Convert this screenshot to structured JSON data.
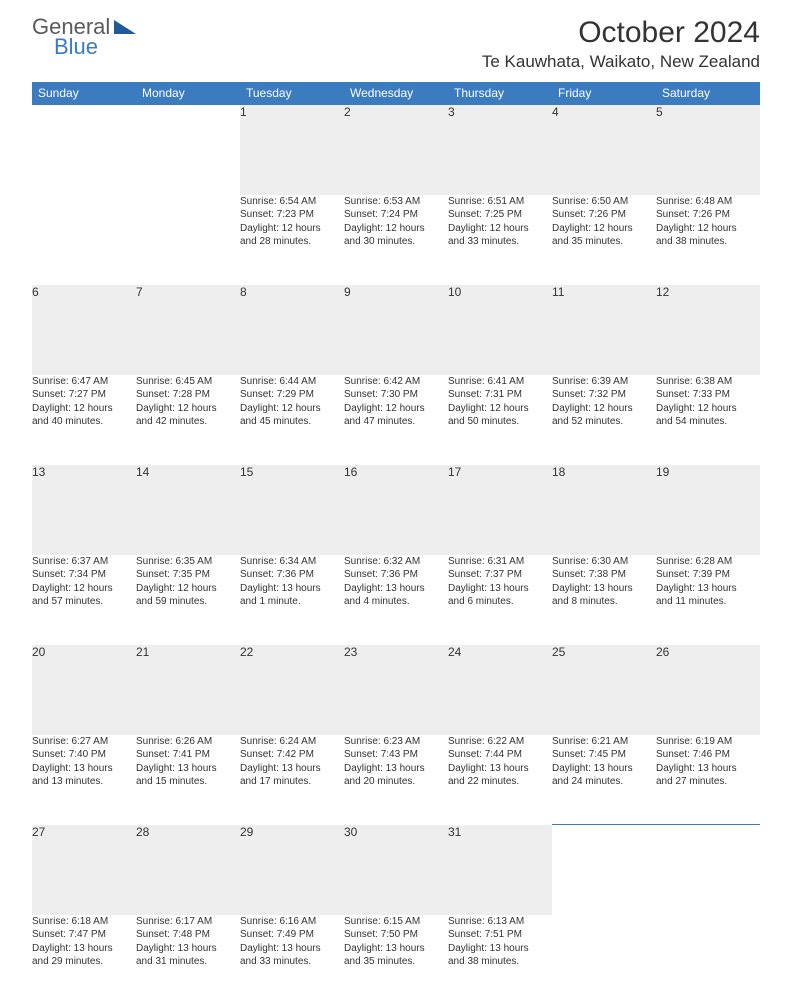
{
  "brand": {
    "word1": "General",
    "word2": "Blue",
    "icon_color": "#1f5a9a"
  },
  "title": "October 2024",
  "location": "Te Kauwhata, Waikato, New Zealand",
  "colors": {
    "header_bg": "#3b7bbf",
    "header_text": "#ffffff",
    "daynum_bg": "#eeeeee",
    "border": "#3b7bbf",
    "body_bg": "#ffffff",
    "text": "#333333"
  },
  "typography": {
    "title_fontsize": 30,
    "location_fontsize": 17,
    "weekday_fontsize": 12,
    "daynum_fontsize": 12,
    "cell_fontsize": 10
  },
  "weekdays": [
    "Sunday",
    "Monday",
    "Tuesday",
    "Wednesday",
    "Thursday",
    "Friday",
    "Saturday"
  ],
  "weeks": [
    [
      null,
      null,
      {
        "n": "1",
        "sr": "Sunrise: 6:54 AM",
        "ss": "Sunset: 7:23 PM",
        "d1": "Daylight: 12 hours",
        "d2": "and 28 minutes."
      },
      {
        "n": "2",
        "sr": "Sunrise: 6:53 AM",
        "ss": "Sunset: 7:24 PM",
        "d1": "Daylight: 12 hours",
        "d2": "and 30 minutes."
      },
      {
        "n": "3",
        "sr": "Sunrise: 6:51 AM",
        "ss": "Sunset: 7:25 PM",
        "d1": "Daylight: 12 hours",
        "d2": "and 33 minutes."
      },
      {
        "n": "4",
        "sr": "Sunrise: 6:50 AM",
        "ss": "Sunset: 7:26 PM",
        "d1": "Daylight: 12 hours",
        "d2": "and 35 minutes."
      },
      {
        "n": "5",
        "sr": "Sunrise: 6:48 AM",
        "ss": "Sunset: 7:26 PM",
        "d1": "Daylight: 12 hours",
        "d2": "and 38 minutes."
      }
    ],
    [
      {
        "n": "6",
        "sr": "Sunrise: 6:47 AM",
        "ss": "Sunset: 7:27 PM",
        "d1": "Daylight: 12 hours",
        "d2": "and 40 minutes."
      },
      {
        "n": "7",
        "sr": "Sunrise: 6:45 AM",
        "ss": "Sunset: 7:28 PM",
        "d1": "Daylight: 12 hours",
        "d2": "and 42 minutes."
      },
      {
        "n": "8",
        "sr": "Sunrise: 6:44 AM",
        "ss": "Sunset: 7:29 PM",
        "d1": "Daylight: 12 hours",
        "d2": "and 45 minutes."
      },
      {
        "n": "9",
        "sr": "Sunrise: 6:42 AM",
        "ss": "Sunset: 7:30 PM",
        "d1": "Daylight: 12 hours",
        "d2": "and 47 minutes."
      },
      {
        "n": "10",
        "sr": "Sunrise: 6:41 AM",
        "ss": "Sunset: 7:31 PM",
        "d1": "Daylight: 12 hours",
        "d2": "and 50 minutes."
      },
      {
        "n": "11",
        "sr": "Sunrise: 6:39 AM",
        "ss": "Sunset: 7:32 PM",
        "d1": "Daylight: 12 hours",
        "d2": "and 52 minutes."
      },
      {
        "n": "12",
        "sr": "Sunrise: 6:38 AM",
        "ss": "Sunset: 7:33 PM",
        "d1": "Daylight: 12 hours",
        "d2": "and 54 minutes."
      }
    ],
    [
      {
        "n": "13",
        "sr": "Sunrise: 6:37 AM",
        "ss": "Sunset: 7:34 PM",
        "d1": "Daylight: 12 hours",
        "d2": "and 57 minutes."
      },
      {
        "n": "14",
        "sr": "Sunrise: 6:35 AM",
        "ss": "Sunset: 7:35 PM",
        "d1": "Daylight: 12 hours",
        "d2": "and 59 minutes."
      },
      {
        "n": "15",
        "sr": "Sunrise: 6:34 AM",
        "ss": "Sunset: 7:36 PM",
        "d1": "Daylight: 13 hours",
        "d2": "and 1 minute."
      },
      {
        "n": "16",
        "sr": "Sunrise: 6:32 AM",
        "ss": "Sunset: 7:36 PM",
        "d1": "Daylight: 13 hours",
        "d2": "and 4 minutes."
      },
      {
        "n": "17",
        "sr": "Sunrise: 6:31 AM",
        "ss": "Sunset: 7:37 PM",
        "d1": "Daylight: 13 hours",
        "d2": "and 6 minutes."
      },
      {
        "n": "18",
        "sr": "Sunrise: 6:30 AM",
        "ss": "Sunset: 7:38 PM",
        "d1": "Daylight: 13 hours",
        "d2": "and 8 minutes."
      },
      {
        "n": "19",
        "sr": "Sunrise: 6:28 AM",
        "ss": "Sunset: 7:39 PM",
        "d1": "Daylight: 13 hours",
        "d2": "and 11 minutes."
      }
    ],
    [
      {
        "n": "20",
        "sr": "Sunrise: 6:27 AM",
        "ss": "Sunset: 7:40 PM",
        "d1": "Daylight: 13 hours",
        "d2": "and 13 minutes."
      },
      {
        "n": "21",
        "sr": "Sunrise: 6:26 AM",
        "ss": "Sunset: 7:41 PM",
        "d1": "Daylight: 13 hours",
        "d2": "and 15 minutes."
      },
      {
        "n": "22",
        "sr": "Sunrise: 6:24 AM",
        "ss": "Sunset: 7:42 PM",
        "d1": "Daylight: 13 hours",
        "d2": "and 17 minutes."
      },
      {
        "n": "23",
        "sr": "Sunrise: 6:23 AM",
        "ss": "Sunset: 7:43 PM",
        "d1": "Daylight: 13 hours",
        "d2": "and 20 minutes."
      },
      {
        "n": "24",
        "sr": "Sunrise: 6:22 AM",
        "ss": "Sunset: 7:44 PM",
        "d1": "Daylight: 13 hours",
        "d2": "and 22 minutes."
      },
      {
        "n": "25",
        "sr": "Sunrise: 6:21 AM",
        "ss": "Sunset: 7:45 PM",
        "d1": "Daylight: 13 hours",
        "d2": "and 24 minutes."
      },
      {
        "n": "26",
        "sr": "Sunrise: 6:19 AM",
        "ss": "Sunset: 7:46 PM",
        "d1": "Daylight: 13 hours",
        "d2": "and 27 minutes."
      }
    ],
    [
      {
        "n": "27",
        "sr": "Sunrise: 6:18 AM",
        "ss": "Sunset: 7:47 PM",
        "d1": "Daylight: 13 hours",
        "d2": "and 29 minutes."
      },
      {
        "n": "28",
        "sr": "Sunrise: 6:17 AM",
        "ss": "Sunset: 7:48 PM",
        "d1": "Daylight: 13 hours",
        "d2": "and 31 minutes."
      },
      {
        "n": "29",
        "sr": "Sunrise: 6:16 AM",
        "ss": "Sunset: 7:49 PM",
        "d1": "Daylight: 13 hours",
        "d2": "and 33 minutes."
      },
      {
        "n": "30",
        "sr": "Sunrise: 6:15 AM",
        "ss": "Sunset: 7:50 PM",
        "d1": "Daylight: 13 hours",
        "d2": "and 35 minutes."
      },
      {
        "n": "31",
        "sr": "Sunrise: 6:13 AM",
        "ss": "Sunset: 7:51 PM",
        "d1": "Daylight: 13 hours",
        "d2": "and 38 minutes."
      },
      null,
      null
    ]
  ]
}
